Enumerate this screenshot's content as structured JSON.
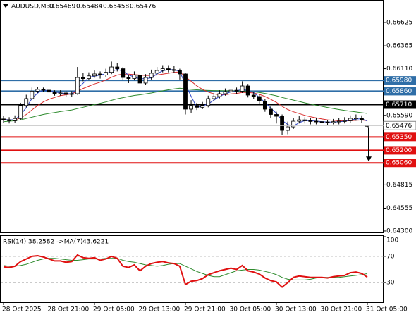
{
  "chart_data": {
    "type": "candlestick",
    "symbol": "AUDUSD,M30",
    "header_values": [
      "0.65469",
      "0.65484",
      "0.65458",
      "0.65476"
    ],
    "categories": [
      "28 Oct 2025",
      null,
      null,
      null,
      null,
      null,
      null,
      null,
      "28 Oct 21:00",
      null,
      null,
      null,
      null,
      null,
      null,
      null,
      "29 Oct 05:00",
      null,
      null,
      null,
      null,
      null,
      null,
      null,
      "29 Oct 13:00",
      null,
      null,
      null,
      null,
      null,
      null,
      null,
      "29 Oct 21:00",
      null,
      null,
      null,
      null,
      null,
      null,
      null,
      "30 Oct 05:00",
      null,
      null,
      null,
      null,
      null,
      null,
      null,
      "30 Oct 13:00",
      null,
      null,
      null,
      null,
      null,
      null,
      null,
      "30 Oct 21:00",
      null,
      null,
      null,
      null,
      null,
      null,
      null,
      "31 Oct 05:00"
    ],
    "open": [
      0.6555,
      0.65541,
      0.6553,
      0.65555,
      0.657,
      0.65777,
      0.6586,
      0.6588,
      0.65871,
      0.6585,
      0.65832,
      0.6584,
      0.65825,
      0.65832,
      0.66012,
      0.66,
      0.6603,
      0.66052,
      0.6604,
      0.6607,
      0.6613,
      0.6611,
      0.66012,
      0.66,
      0.6604,
      0.6595,
      0.66012,
      0.6606,
      0.66091,
      0.6611,
      0.661,
      0.66091,
      0.66052,
      0.65659,
      0.65698,
      0.6568,
      0.657,
      0.65777,
      0.658,
      0.65832,
      0.65855,
      0.6587,
      0.6586,
      0.65918,
      0.65816,
      0.658,
      0.6575,
      0.65659,
      0.656,
      0.6558,
      0.65423,
      0.65462,
      0.65525,
      0.6554,
      0.6553,
      0.65525,
      0.6552,
      0.65517,
      0.6551,
      0.6552,
      0.65525,
      0.6553,
      0.65557,
      0.6556,
      0.65469
    ],
    "high": [
      0.6558,
      0.6557,
      0.6559,
      0.6573,
      0.6582,
      0.659,
      0.6591,
      0.659,
      0.6589,
      0.6587,
      0.6587,
      0.6586,
      0.6586,
      0.6613,
      0.6606,
      0.6607,
      0.6609,
      0.6608,
      0.6611,
      0.6619,
      0.6617,
      0.6613,
      0.6604,
      0.6608,
      0.6606,
      0.6605,
      0.661,
      0.6613,
      0.6615,
      0.6615,
      0.6614,
      0.6611,
      0.6606,
      0.6576,
      0.6573,
      0.6574,
      0.6581,
      0.6584,
      0.6587,
      0.6589,
      0.6591,
      0.659,
      0.6597,
      0.6594,
      0.6585,
      0.6582,
      0.6577,
      0.6569,
      0.6563,
      0.656,
      0.6552,
      0.6556,
      0.6558,
      0.6557,
      0.6556,
      0.6556,
      0.6555,
      0.6554,
      0.6555,
      0.6556,
      0.6557,
      0.6559,
      0.656,
      0.6559,
      0.65484
    ],
    "low": [
      0.6551,
      0.655,
      0.6551,
      0.6554,
      0.6568,
      0.6576,
      0.6584,
      0.6585,
      0.6583,
      0.6581,
      0.6581,
      0.658,
      0.658,
      0.6582,
      0.6597,
      0.6598,
      0.6601,
      0.66,
      0.6602,
      0.6605,
      0.6608,
      0.6598,
      0.6595,
      0.6598,
      0.659,
      0.6593,
      0.6599,
      0.6604,
      0.6607,
      0.6607,
      0.6606,
      0.6599,
      0.656,
      0.6562,
      0.6565,
      0.6566,
      0.6568,
      0.6575,
      0.6578,
      0.6581,
      0.6583,
      0.6583,
      0.6584,
      0.6579,
      0.6577,
      0.6572,
      0.6563,
      0.6556,
      0.655,
      0.6537,
      0.6538,
      0.6544,
      0.655,
      0.655,
      0.6549,
      0.6549,
      0.6549,
      0.6548,
      0.6549,
      0.6549,
      0.655,
      0.6551,
      0.6553,
      0.6551,
      0.65458
    ],
    "close": [
      0.65541,
      0.6553,
      0.65555,
      0.657,
      0.65777,
      0.6586,
      0.6588,
      0.65871,
      0.6585,
      0.65832,
      0.6584,
      0.65825,
      0.65832,
      0.66012,
      0.66,
      0.6603,
      0.66052,
      0.6604,
      0.6607,
      0.6613,
      0.6611,
      0.66012,
      0.66,
      0.6604,
      0.6595,
      0.66012,
      0.6606,
      0.66091,
      0.6611,
      0.661,
      0.66091,
      0.66052,
      0.65659,
      0.65698,
      0.6568,
      0.657,
      0.65777,
      0.658,
      0.65832,
      0.65855,
      0.6587,
      0.6586,
      0.65918,
      0.65816,
      0.658,
      0.6575,
      0.65659,
      0.656,
      0.6558,
      0.65423,
      0.65462,
      0.65525,
      0.6554,
      0.6553,
      0.65525,
      0.6552,
      0.65517,
      0.6551,
      0.6552,
      0.65525,
      0.6553,
      0.65557,
      0.6556,
      0.6554,
      0.65476
    ],
    "series": [
      {
        "color": "#2d45c8",
        "values": [
          0.65545,
          0.6554,
          0.65542,
          0.65595,
          0.65677,
          0.65779,
          0.65839,
          0.6587,
          0.65867,
          0.65851,
          0.65841,
          0.65832,
          0.65832,
          0.6589,
          0.65948,
          0.66014,
          0.66027,
          0.66041,
          0.66054,
          0.6608,
          0.66103,
          0.66084,
          0.66041,
          0.66017,
          0.65997,
          0.66001,
          0.66007,
          0.66054,
          0.66087,
          0.661,
          0.661,
          0.66081,
          0.65934,
          0.65803,
          0.65679,
          0.65693,
          0.65719,
          0.65759,
          0.65803,
          0.65829,
          0.65852,
          0.65862,
          0.65883,
          0.65865,
          0.65845,
          0.65789,
          0.65736,
          0.6567,
          0.65613,
          0.65534,
          0.65488,
          0.6547,
          0.65509,
          0.65532,
          0.65532,
          0.65525,
          0.65521,
          0.65516,
          0.65516,
          0.65518,
          0.65525,
          0.65537,
          0.65549,
          0.65552,
          0.65527
        ]
      },
      {
        "color": "#d92b2b",
        "values": [
          0.65545,
          0.6554,
          0.6554,
          0.6556,
          0.656,
          0.6565,
          0.657,
          0.6574,
          0.6577,
          0.6579,
          0.6581,
          0.6582,
          0.6583,
          0.6586,
          0.6589,
          0.65915,
          0.6594,
          0.6596,
          0.65985,
          0.66015,
          0.6604,
          0.6605,
          0.6605,
          0.66045,
          0.6604,
          0.66035,
          0.66035,
          0.6604,
          0.6605,
          0.6606,
          0.6607,
          0.66075,
          0.6602,
          0.6597,
          0.6592,
          0.6588,
          0.6585,
          0.6583,
          0.6582,
          0.6582,
          0.6583,
          0.65835,
          0.65845,
          0.65845,
          0.6584,
          0.65825,
          0.658,
          0.6577,
          0.65735,
          0.6569,
          0.65655,
          0.6563,
          0.6561,
          0.6559,
          0.65575,
          0.65562,
          0.6555,
          0.6554,
          0.65535,
          0.6553,
          0.65528,
          0.6553,
          0.65535,
          0.65538,
          0.6553
        ]
      },
      {
        "color": "#2e8b2e",
        "values": [
          0.6552,
          0.65525,
          0.6553,
          0.6554,
          0.65555,
          0.6557,
          0.65585,
          0.656,
          0.65612,
          0.65622,
          0.65632,
          0.65642,
          0.6565,
          0.65665,
          0.6568,
          0.65695,
          0.6571,
          0.65725,
          0.6574,
          0.65758,
          0.65775,
          0.65788,
          0.658,
          0.65812,
          0.6582,
          0.6583,
          0.6584,
          0.65852,
          0.65864,
          0.65875,
          0.65885,
          0.65892,
          0.65885,
          0.6588,
          0.65875,
          0.6587,
          0.65868,
          0.65866,
          0.65865,
          0.65864,
          0.65864,
          0.65863,
          0.65862,
          0.65858,
          0.65852,
          0.65845,
          0.65835,
          0.65822,
          0.65808,
          0.6579,
          0.65775,
          0.6576,
          0.65745,
          0.6573,
          0.65716,
          0.65702,
          0.6569,
          0.65678,
          0.65666,
          0.65655,
          0.65645,
          0.65636,
          0.65628,
          0.6562,
          0.65612
        ]
      }
    ],
    "ylim": [
      0.64284,
      0.66861
    ],
    "yticks": [
      0.66625,
      0.66365,
      {
        "value": 0.6611,
        "label": "0.66110"
      },
      {
        "value": 0.6559,
        "label": "0.65590"
      },
      0.64815,
      0.64555,
      {
        "value": 0.643,
        "label": "0.64300"
      }
    ],
    "levels": [
      {
        "value": 0.6598,
        "label": "0.65980",
        "color": "#2f6ea7"
      },
      {
        "value": 0.6586,
        "label": "0.65860",
        "color": "#2f6ea7"
      },
      {
        "value": 0.6571,
        "label": "0.65710",
        "color": "#000000"
      },
      {
        "value": 0.6535,
        "label": "0.65350",
        "color": "#e01010"
      },
      {
        "value": 0.652,
        "label": "0.65200",
        "color": "#e01010"
      },
      {
        "value": 0.6506,
        "label": "0.65060",
        "color": "#e01010"
      }
    ],
    "rsi": {
      "name": "RSI(14)",
      "color": "#e01010",
      "values": [
        54,
        53,
        55,
        62,
        66,
        70,
        71,
        69,
        66,
        63,
        63,
        61,
        62,
        72,
        68,
        67,
        68,
        64,
        66,
        70,
        67,
        55,
        53,
        57,
        48,
        55,
        59,
        61,
        62,
        60,
        59,
        55,
        27,
        32,
        33,
        36,
        42,
        45,
        48,
        50,
        52,
        50,
        56,
        48,
        46,
        43,
        37,
        33,
        31,
        23,
        30,
        38,
        40,
        39,
        38,
        38,
        38,
        37,
        39,
        40,
        41,
        45,
        46,
        44,
        38.2582
      ],
      "ma_name": "->MA(7)",
      "ma_color": "#2e8b2e",
      "ma_values": [
        56,
        55,
        55,
        56,
        58,
        61,
        64,
        66,
        67,
        67,
        66,
        65,
        64,
        64,
        65,
        66,
        66,
        66,
        67,
        67,
        67,
        64,
        62,
        61,
        59,
        57,
        56,
        55,
        56,
        58,
        59,
        59,
        55,
        51,
        47,
        44,
        41,
        39,
        39,
        42,
        45,
        48,
        49,
        50,
        50,
        49,
        47,
        45,
        42,
        38,
        35,
        34,
        34,
        34,
        35,
        37,
        38,
        38,
        38,
        38,
        39,
        40,
        41,
        42,
        43.6221
      ],
      "ylim": [
        0,
        100
      ],
      "yticks": [
        100,
        70,
        30
      ]
    }
  }
}
